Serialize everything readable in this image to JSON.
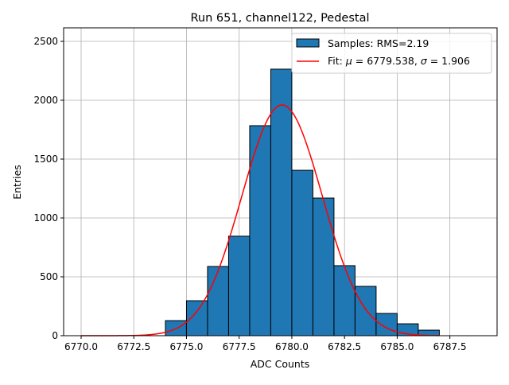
{
  "chart_data": {
    "type": "bar",
    "title": "Run 651, channel122, Pedestal",
    "xlabel": "ADC Counts",
    "ylabel": "Entries",
    "xlim": [
      6769.17,
      6789.74
    ],
    "ylim": [
      0,
      2615
    ],
    "xticks": [
      "6770.0",
      "6772.5",
      "6775.0",
      "6777.5",
      "6780.0",
      "6782.5",
      "6785.0",
      "6787.5"
    ],
    "xtick_values": [
      6770.0,
      6772.5,
      6775.0,
      6777.5,
      6780.0,
      6782.5,
      6785.0,
      6787.5
    ],
    "yticks": [
      "0",
      "500",
      "1000",
      "1500",
      "2000",
      "2500"
    ],
    "ytick_values": [
      0,
      500,
      1000,
      1500,
      2000,
      2500
    ],
    "grid": true,
    "legend_position": "top-right",
    "histogram": {
      "name": "Samples: RMS=2.19",
      "color": "#1f77b4",
      "bin_edges": [
        6774,
        6775,
        6776,
        6777,
        6778,
        6779,
        6780,
        6781,
        6782,
        6783,
        6784,
        6785,
        6786,
        6787
      ],
      "values": [
        128,
        297,
        588,
        845,
        1784,
        2264,
        1405,
        1169,
        595,
        419,
        189,
        101,
        47
      ]
    },
    "fit": {
      "name": "Fit: μ = 6779.538, σ = 1.906",
      "legend_prefix": "Fit: ",
      "mu_label": "μ",
      "mu_text": " = 6779.538, ",
      "sigma_label": "σ",
      "sigma_text": " = 1.906",
      "color": "#ff0000",
      "mu": 6779.538,
      "sigma": 1.906,
      "amplitude": 1960,
      "x_range": [
        6770,
        6787
      ]
    }
  }
}
